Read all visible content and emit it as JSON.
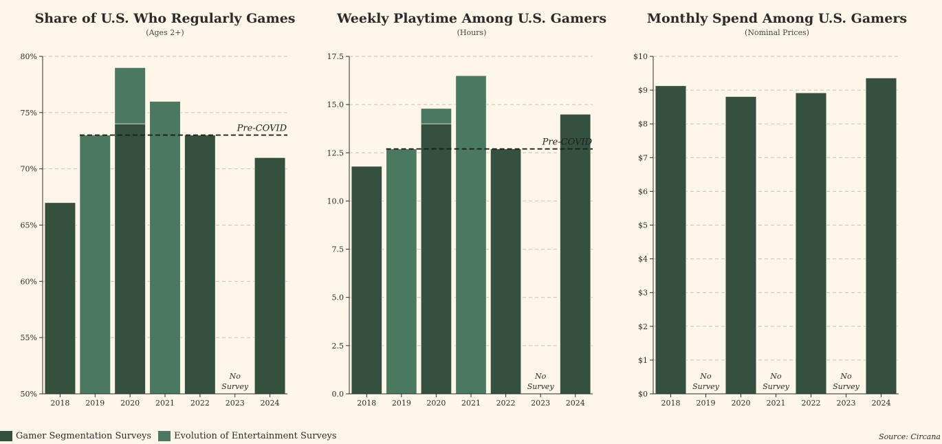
{
  "colors": {
    "gamer_segmentation": "#34503f",
    "evolution_entertainment": "#4a7861",
    "grid": "#c9c3b8",
    "axis": "#2b2b2b",
    "background": "#fdf6e9"
  },
  "legend": {
    "items": [
      {
        "label": "Gamer Segmentation Surveys",
        "color": "#34503f"
      },
      {
        "label": "Evolution of Entertainment Surveys",
        "color": "#4a7861"
      }
    ]
  },
  "source": "Source: Circana",
  "chart_data": [
    {
      "type": "bar",
      "title": "Share of U.S. Who Regularly Games",
      "subtitle": "(Ages 2+)",
      "categories": [
        "2018",
        "2019",
        "2020",
        "2021",
        "2022",
        "2023",
        "2024"
      ],
      "series": [
        {
          "name": "Gamer Segmentation Surveys",
          "values": [
            67,
            null,
            74,
            null,
            73,
            null,
            71
          ]
        },
        {
          "name": "Evolution of Entertainment Surveys",
          "values": [
            null,
            73,
            79,
            76,
            null,
            null,
            null
          ]
        }
      ],
      "ylim": [
        50,
        80
      ],
      "yticks": [
        50,
        55,
        60,
        65,
        70,
        75,
        80
      ],
      "ytick_labels": [
        "50%",
        "55%",
        "60%",
        "65%",
        "70%",
        "75%",
        "80%"
      ],
      "reference_line": {
        "label": "Pre-COVID",
        "value": 73,
        "from_category": "2019"
      },
      "annotations": [
        {
          "category": "2023",
          "lines": [
            "No",
            "Survey"
          ]
        }
      ],
      "grid": true
    },
    {
      "type": "bar",
      "title": "Weekly Playtime Among U.S. Gamers",
      "subtitle": "(Hours)",
      "categories": [
        "2018",
        "2019",
        "2020",
        "2021",
        "2022",
        "2023",
        "2024"
      ],
      "series": [
        {
          "name": "Gamer Segmentation Surveys",
          "values": [
            11.8,
            null,
            14.0,
            null,
            12.7,
            null,
            14.5
          ]
        },
        {
          "name": "Evolution of Entertainment Surveys",
          "values": [
            null,
            12.7,
            14.8,
            16.5,
            null,
            null,
            null
          ]
        }
      ],
      "ylim": [
        0,
        17.5
      ],
      "yticks": [
        0,
        2.5,
        5,
        7.5,
        10,
        12.5,
        15,
        17.5
      ],
      "ytick_labels": [
        "0.0",
        "2.5",
        "5.0",
        "7.5",
        "10.0",
        "12.5",
        "15.0",
        "17.5"
      ],
      "reference_line": {
        "label": "Pre-COVID",
        "value": 12.7,
        "from_category": "2019"
      },
      "annotations": [
        {
          "category": "2023",
          "lines": [
            "No",
            "Survey"
          ]
        }
      ],
      "grid": true
    },
    {
      "type": "bar",
      "title": "Monthly Spend Among U.S. Gamers",
      "subtitle": "(Nominal Prices)",
      "categories": [
        "2018",
        "2019",
        "2020",
        "2021",
        "2022",
        "2023",
        "2024"
      ],
      "series": [
        {
          "name": "Gamer Segmentation Surveys",
          "values": [
            9.13,
            null,
            8.81,
            null,
            8.92,
            null,
            9.36
          ]
        }
      ],
      "ylim": [
        0,
        10
      ],
      "yticks": [
        0,
        1,
        2,
        3,
        4,
        5,
        6,
        7,
        8,
        9,
        10
      ],
      "ytick_labels": [
        "$0",
        "$1",
        "$2",
        "$3",
        "$4",
        "$5",
        "$6",
        "$7",
        "$8",
        "$9",
        "$10"
      ],
      "annotations": [
        {
          "category": "2019",
          "lines": [
            "No",
            "Survey"
          ]
        },
        {
          "category": "2021",
          "lines": [
            "No",
            "Survey"
          ]
        },
        {
          "category": "2023",
          "lines": [
            "No",
            "Survey"
          ]
        }
      ],
      "grid": true
    }
  ]
}
